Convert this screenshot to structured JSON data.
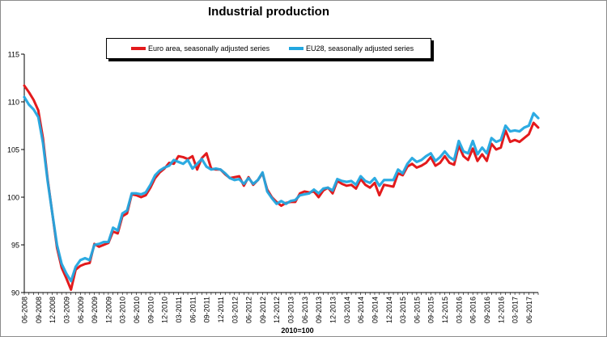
{
  "chart_data": {
    "type": "line",
    "title": "Industrial production",
    "xlabel": "2010=100",
    "ylabel": "",
    "ylim": [
      90,
      115
    ],
    "yticks": [
      90,
      95,
      100,
      105,
      110,
      115
    ],
    "x_tick_labels": [
      "06-2008",
      "09-2008",
      "12-2008",
      "03-2009",
      "06-2009",
      "09-2009",
      "12-2009",
      "03-2010",
      "06-2010",
      "09-2010",
      "12-2010",
      "03-2011",
      "06-2011",
      "09-2011",
      "12-2011",
      "03-2012",
      "06-2012",
      "09-2012",
      "12-2012",
      "03-2013",
      "06-2013",
      "09-2013",
      "12-2013",
      "03-2014",
      "06-2014",
      "09-2014",
      "12-2014",
      "03-2015",
      "06-2015",
      "09-2015",
      "12-2015",
      "03-2016",
      "06-2016",
      "09-2016",
      "12-2016",
      "03-2017",
      "06-2017"
    ],
    "grid": false,
    "legend_placement": "top-center",
    "series": [
      {
        "name": "Euro area, seasonally adjusted series",
        "color": "#e31a1c",
        "values": [
          111.7,
          111.0,
          110.2,
          109.1,
          106.2,
          101.9,
          98.3,
          94.7,
          92.6,
          91.5,
          90.3,
          92.4,
          92.8,
          93.0,
          93.1,
          95.1,
          94.8,
          95.0,
          95.2,
          96.4,
          96.2,
          98.0,
          98.3,
          100.3,
          100.2,
          100.0,
          100.2,
          101.0,
          102.0,
          102.6,
          103.0,
          103.6,
          103.5,
          104.3,
          104.2,
          104.0,
          104.3,
          102.9,
          104.1,
          104.6,
          103.0,
          102.9,
          102.9,
          102.4,
          102.0,
          102.1,
          102.2,
          101.2,
          102.1,
          101.3,
          101.8,
          102.5,
          100.8,
          100.0,
          99.5,
          99.1,
          99.4,
          99.5,
          99.5,
          100.4,
          100.6,
          100.5,
          100.6,
          100.0,
          100.7,
          101.0,
          100.4,
          101.7,
          101.4,
          101.2,
          101.3,
          100.9,
          101.9,
          101.3,
          101.0,
          101.5,
          100.2,
          101.3,
          101.2,
          101.1,
          102.5,
          102.3,
          103.2,
          103.5,
          103.1,
          103.3,
          103.6,
          104.2,
          103.3,
          103.6,
          104.3,
          103.6,
          103.4,
          105.4,
          104.3,
          103.9,
          105.1,
          103.8,
          104.5,
          103.8,
          105.6,
          105.0,
          105.2,
          107.0,
          105.8,
          106.0,
          105.8,
          106.2,
          106.6,
          107.8,
          107.3
        ]
      },
      {
        "name": "EU28, seasonally adjusted series",
        "color": "#22a7e0",
        "values": [
          110.5,
          109.7,
          109.2,
          108.4,
          105.7,
          101.7,
          98.3,
          95.0,
          93.0,
          92.0,
          91.2,
          92.7,
          93.4,
          93.6,
          93.4,
          95.0,
          95.1,
          95.3,
          95.3,
          96.8,
          96.5,
          98.3,
          98.6,
          100.4,
          100.4,
          100.3,
          100.5,
          101.3,
          102.3,
          102.8,
          103.1,
          103.3,
          103.9,
          103.7,
          103.5,
          103.9,
          103.0,
          103.5,
          104.0,
          103.2,
          102.9,
          103.0,
          102.9,
          102.5,
          102.0,
          101.8,
          101.9,
          101.4,
          102.0,
          101.4,
          101.8,
          102.6,
          100.6,
          99.9,
          99.3,
          99.6,
          99.3,
          99.6,
          99.7,
          100.2,
          100.3,
          100.4,
          100.8,
          100.4,
          100.9,
          101.0,
          100.7,
          101.9,
          101.7,
          101.6,
          101.7,
          101.3,
          102.2,
          101.7,
          101.5,
          102.0,
          101.2,
          101.8,
          101.8,
          101.8,
          102.9,
          102.5,
          103.5,
          104.1,
          103.7,
          103.9,
          104.3,
          104.6,
          103.8,
          104.2,
          104.8,
          104.2,
          103.9,
          105.9,
          104.8,
          104.6,
          105.9,
          104.5,
          105.2,
          104.6,
          106.2,
          105.8,
          106.0,
          107.5,
          106.9,
          107.0,
          106.9,
          107.3,
          107.5,
          108.8,
          108.3
        ]
      }
    ]
  }
}
